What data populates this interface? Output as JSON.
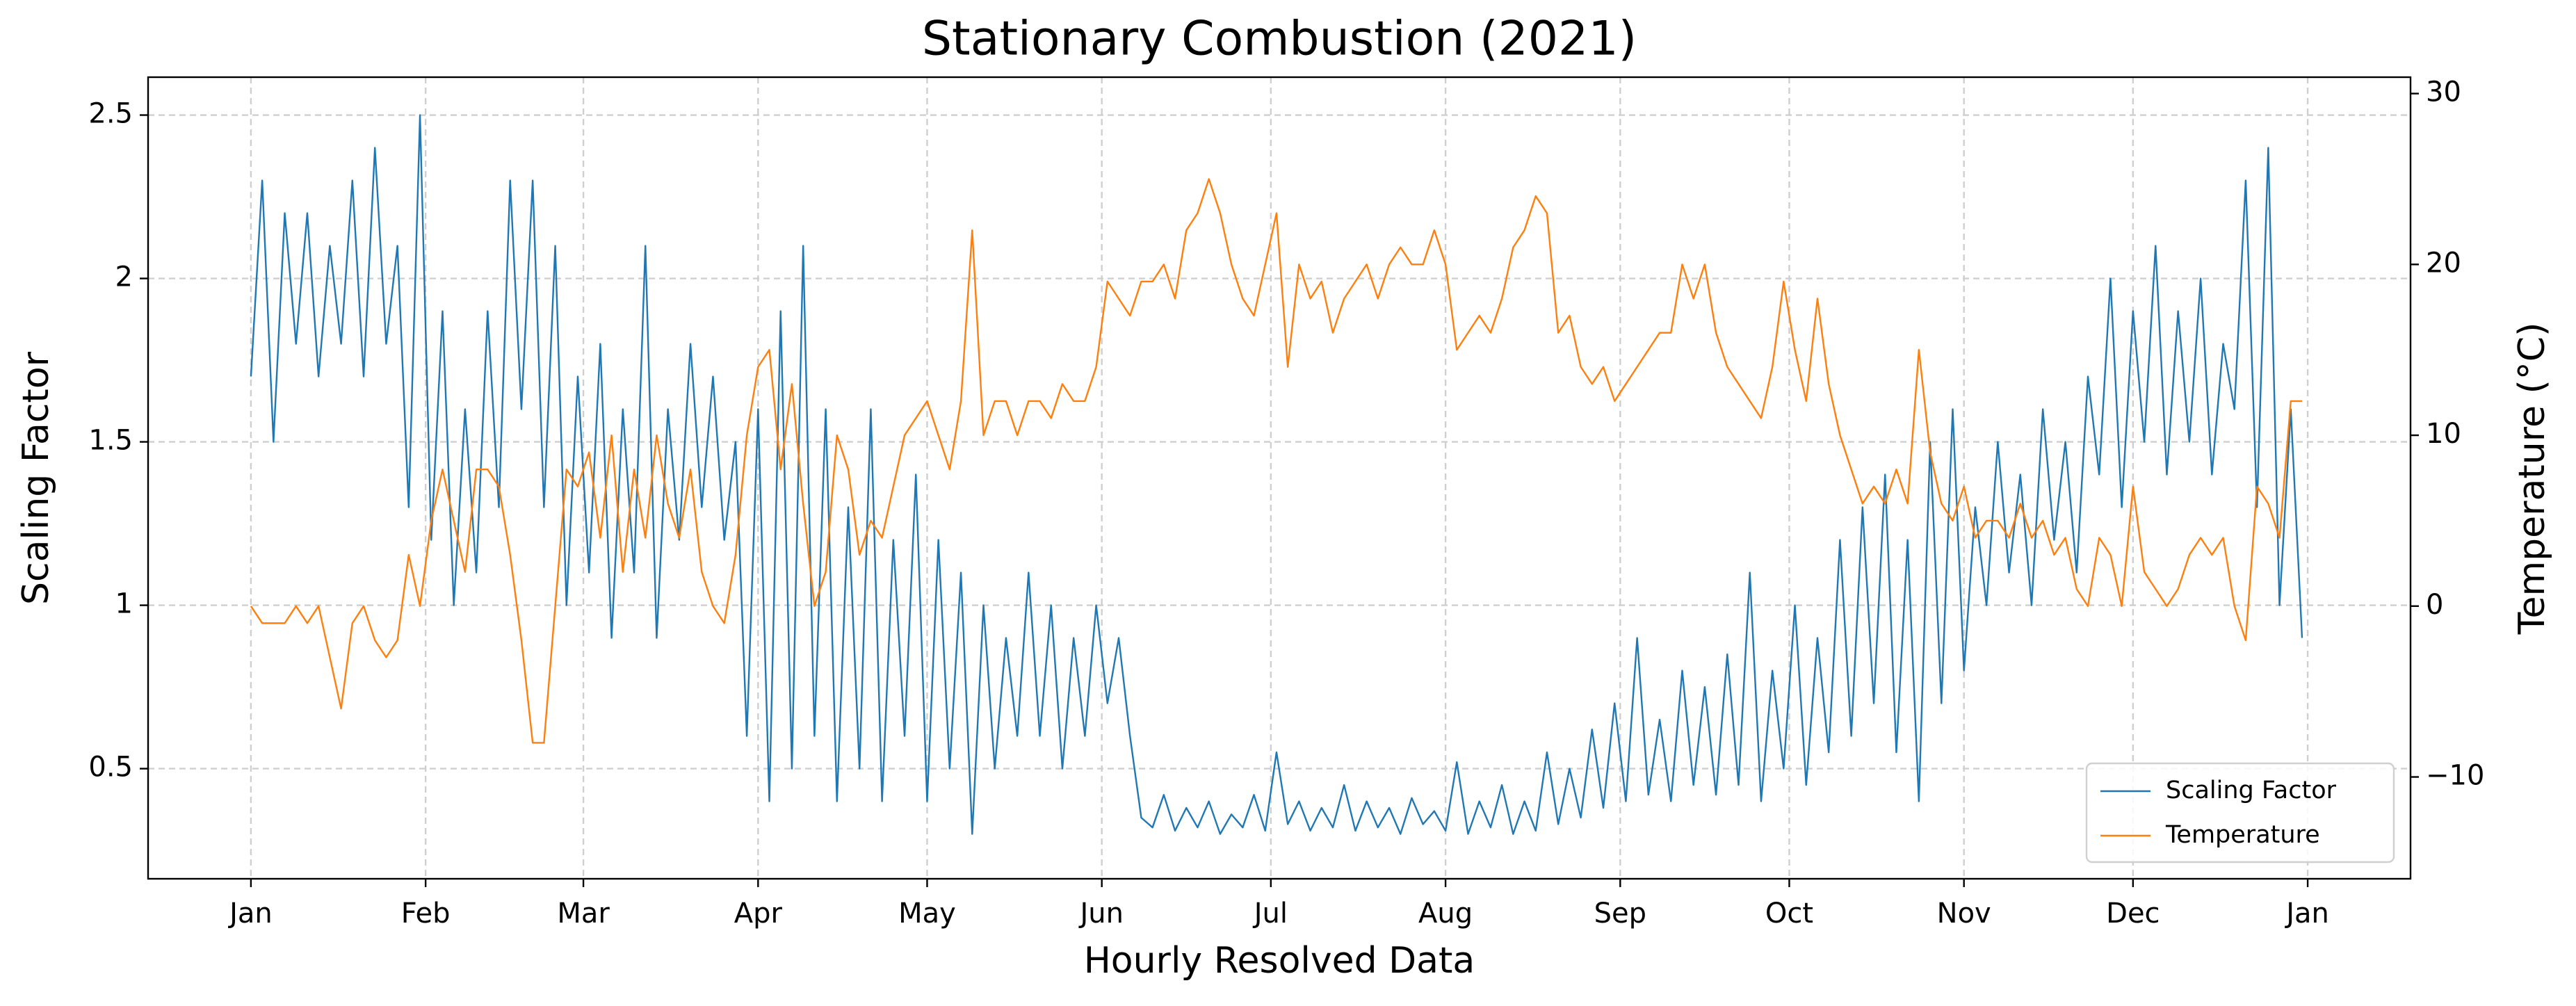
{
  "chart_data": {
    "type": "line",
    "title": "Stationary Combustion (2021)",
    "xlabel": "Hourly Resolved Data",
    "ylabel": "Scaling Factor",
    "y2label": "Temperature (°C)",
    "x": [
      0,
      2,
      4,
      6,
      8,
      10,
      12,
      14,
      16,
      18,
      20,
      22,
      24,
      26,
      28,
      30,
      32,
      34,
      36,
      38,
      40,
      42,
      44,
      46,
      48,
      50,
      52,
      54,
      56,
      58,
      60,
      62,
      64,
      66,
      68,
      70,
      72,
      74,
      76,
      78,
      80,
      82,
      84,
      86,
      88,
      90,
      92,
      94,
      96,
      98,
      100,
      102,
      104,
      106,
      108,
      110,
      112,
      114,
      116,
      118,
      120,
      122,
      124,
      126,
      128,
      130,
      132,
      134,
      136,
      138,
      140,
      142,
      144,
      146,
      148,
      150,
      152,
      154,
      156,
      158,
      160,
      162,
      164,
      166,
      168,
      170,
      172,
      174,
      176,
      178,
      180,
      182,
      184,
      186,
      188,
      190,
      192,
      194,
      196,
      198,
      200,
      202,
      204,
      206,
      208,
      210,
      212,
      214,
      216,
      218,
      220,
      222,
      224,
      226,
      228,
      230,
      232,
      234,
      236,
      238,
      240,
      242,
      244,
      246,
      248,
      250,
      252,
      254,
      256,
      258,
      260,
      262,
      264,
      266,
      268,
      270,
      272,
      274,
      276,
      278,
      280,
      282,
      284,
      286,
      288,
      290,
      292,
      294,
      296,
      298,
      300,
      302,
      304,
      306,
      308,
      310,
      312,
      314,
      316,
      318,
      320,
      322,
      324,
      326,
      328,
      330,
      332,
      334,
      336,
      338,
      340,
      342,
      344,
      346,
      348,
      350,
      352,
      354,
      356,
      358,
      360,
      362,
      364
    ],
    "series": [
      {
        "name": "Scaling Factor",
        "color": "#1f77b4",
        "axis": "y",
        "values": [
          1.7,
          2.3,
          1.5,
          2.2,
          1.8,
          2.2,
          1.7,
          2.1,
          1.8,
          2.3,
          1.7,
          2.4,
          1.8,
          2.1,
          1.3,
          2.5,
          1.2,
          1.9,
          1.0,
          1.6,
          1.1,
          1.9,
          1.3,
          2.3,
          1.6,
          2.3,
          1.3,
          2.1,
          1.0,
          1.7,
          1.1,
          1.8,
          0.9,
          1.6,
          1.1,
          2.1,
          0.9,
          1.6,
          1.2,
          1.8,
          1.3,
          1.7,
          1.2,
          1.5,
          0.6,
          1.6,
          0.4,
          1.9,
          0.5,
          2.1,
          0.6,
          1.6,
          0.4,
          1.3,
          0.5,
          1.6,
          0.4,
          1.2,
          0.6,
          1.4,
          0.4,
          1.2,
          0.5,
          1.1,
          0.3,
          1.0,
          0.5,
          0.9,
          0.6,
          1.1,
          0.6,
          1.0,
          0.5,
          0.9,
          0.6,
          1.0,
          0.7,
          0.9,
          0.6,
          0.35,
          0.32,
          0.42,
          0.31,
          0.38,
          0.32,
          0.4,
          0.3,
          0.36,
          0.32,
          0.42,
          0.31,
          0.55,
          0.33,
          0.4,
          0.31,
          0.38,
          0.32,
          0.45,
          0.31,
          0.4,
          0.32,
          0.38,
          0.3,
          0.41,
          0.33,
          0.37,
          0.31,
          0.52,
          0.3,
          0.4,
          0.32,
          0.45,
          0.3,
          0.4,
          0.31,
          0.55,
          0.33,
          0.5,
          0.35,
          0.62,
          0.38,
          0.7,
          0.4,
          0.9,
          0.42,
          0.65,
          0.4,
          0.8,
          0.45,
          0.75,
          0.42,
          0.85,
          0.45,
          1.1,
          0.4,
          0.8,
          0.5,
          1.0,
          0.45,
          0.9,
          0.55,
          1.2,
          0.6,
          1.3,
          0.7,
          1.4,
          0.55,
          1.2,
          0.4,
          1.5,
          0.7,
          1.6,
          0.8,
          1.3,
          1.0,
          1.5,
          1.1,
          1.4,
          1.0,
          1.6,
          1.2,
          1.5,
          1.1,
          1.7,
          1.4,
          2.0,
          1.3,
          1.9,
          1.5,
          2.1,
          1.4,
          1.9,
          1.5,
          2.0,
          1.4,
          1.8,
          1.6,
          2.3,
          1.3,
          2.4,
          1.0,
          1.6,
          0.9
        ]
      },
      {
        "name": "Temperature",
        "color": "#ff7f0e",
        "axis": "y2",
        "values": [
          0,
          -1,
          -1,
          -1,
          0,
          -1,
          0,
          -3,
          -6,
          -1,
          0,
          -2,
          -3,
          -2,
          3,
          0,
          5,
          8,
          5,
          2,
          8,
          8,
          7,
          3,
          -2,
          -8,
          -8,
          0,
          8,
          7,
          9,
          4,
          10,
          2,
          8,
          4,
          10,
          6,
          4,
          8,
          2,
          0,
          -1,
          3,
          10,
          14,
          15,
          8,
          13,
          6,
          0,
          2,
          10,
          8,
          3,
          5,
          4,
          7,
          10,
          11,
          12,
          10,
          8,
          12,
          22,
          10,
          12,
          12,
          10,
          12,
          12,
          11,
          13,
          12,
          12,
          14,
          19,
          18,
          17,
          19,
          19,
          20,
          18,
          22,
          23,
          25,
          23,
          20,
          18,
          17,
          20,
          23,
          14,
          20,
          18,
          19,
          16,
          18,
          19,
          20,
          18,
          20,
          21,
          20,
          20,
          22,
          20,
          15,
          16,
          17,
          16,
          18,
          21,
          22,
          24,
          23,
          16,
          17,
          14,
          13,
          14,
          12,
          13,
          14,
          15,
          16,
          16,
          20,
          18,
          20,
          16,
          14,
          13,
          12,
          11,
          14,
          19,
          15,
          12,
          18,
          13,
          10,
          8,
          6,
          7,
          6,
          8,
          6,
          15,
          9,
          6,
          5,
          7,
          4,
          5,
          5,
          4,
          6,
          4,
          5,
          3,
          4,
          1,
          0,
          4,
          3,
          0,
          7,
          2,
          1,
          0,
          1,
          3,
          4,
          3,
          4,
          0,
          -2,
          7,
          6,
          4,
          12,
          12
        ]
      }
    ],
    "xlim": [
      -18.25,
      383.25
    ],
    "xticks": [
      {
        "value": 0,
        "label": "Jan"
      },
      {
        "value": 31,
        "label": "Feb"
      },
      {
        "value": 59,
        "label": "Mar"
      },
      {
        "value": 90,
        "label": "Apr"
      },
      {
        "value": 120,
        "label": "May"
      },
      {
        "value": 151,
        "label": "Jun"
      },
      {
        "value": 181,
        "label": "Jul"
      },
      {
        "value": 212,
        "label": "Aug"
      },
      {
        "value": 243,
        "label": "Sep"
      },
      {
        "value": 273,
        "label": "Oct"
      },
      {
        "value": 304,
        "label": "Nov"
      },
      {
        "value": 334,
        "label": "Dec"
      },
      {
        "value": 365,
        "label": "Jan"
      }
    ],
    "ylim": [
      0.163,
      2.616
    ],
    "yticks": [
      0.5,
      1.0,
      1.5,
      2.0,
      2.5
    ],
    "y2lim": [
      -15.96,
      30.96
    ],
    "y2ticks": [
      {
        "value": -10,
        "label": "−10"
      },
      0,
      10,
      20,
      30
    ],
    "grid": true,
    "legend": "lower right"
  }
}
